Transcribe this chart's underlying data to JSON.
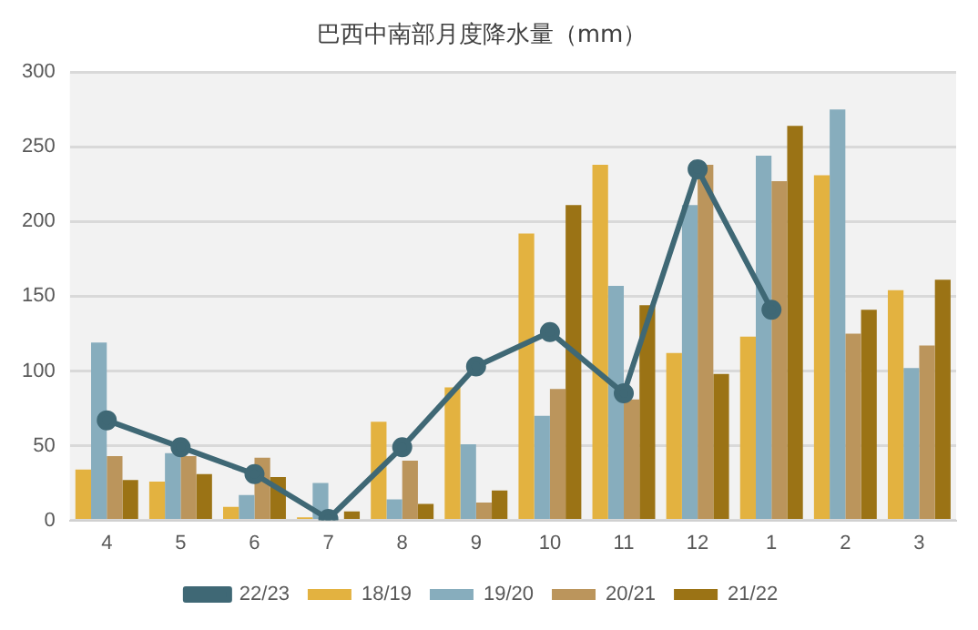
{
  "chart_data": {
    "type": "bar",
    "title": "巴西中南部月度降水量（mm）",
    "categories": [
      "4",
      "5",
      "6",
      "7",
      "8",
      "9",
      "10",
      "11",
      "12",
      "1",
      "2",
      "3"
    ],
    "series": [
      {
        "name": "18/19",
        "color": "#e3b240",
        "values": [
          34,
          26,
          9,
          2,
          66,
          89,
          192,
          238,
          112,
          123,
          231,
          154
        ]
      },
      {
        "name": "19/20",
        "color": "#87adbd",
        "values": [
          119,
          45,
          17,
          25,
          14,
          51,
          70,
          157,
          211,
          244,
          275,
          102
        ]
      },
      {
        "name": "20/21",
        "color": "#bb955c",
        "values": [
          43,
          43,
          42,
          1,
          40,
          12,
          88,
          81,
          238,
          227,
          125,
          117
        ]
      },
      {
        "name": "21/22",
        "color": "#9b7315",
        "values": [
          27,
          31,
          29,
          6,
          11,
          20,
          211,
          144,
          98,
          264,
          141,
          161
        ]
      },
      {
        "name": "22/23",
        "type": "line",
        "color": "#3f6875",
        "values": [
          67,
          49,
          31,
          1,
          49,
          103,
          126,
          85,
          235,
          141,
          null,
          null
        ]
      }
    ],
    "ylim": [
      0,
      300
    ],
    "yticks": [
      0,
      50,
      100,
      150,
      200,
      250,
      300
    ],
    "grid": "y",
    "legend": "bottom",
    "marker": "circle"
  }
}
